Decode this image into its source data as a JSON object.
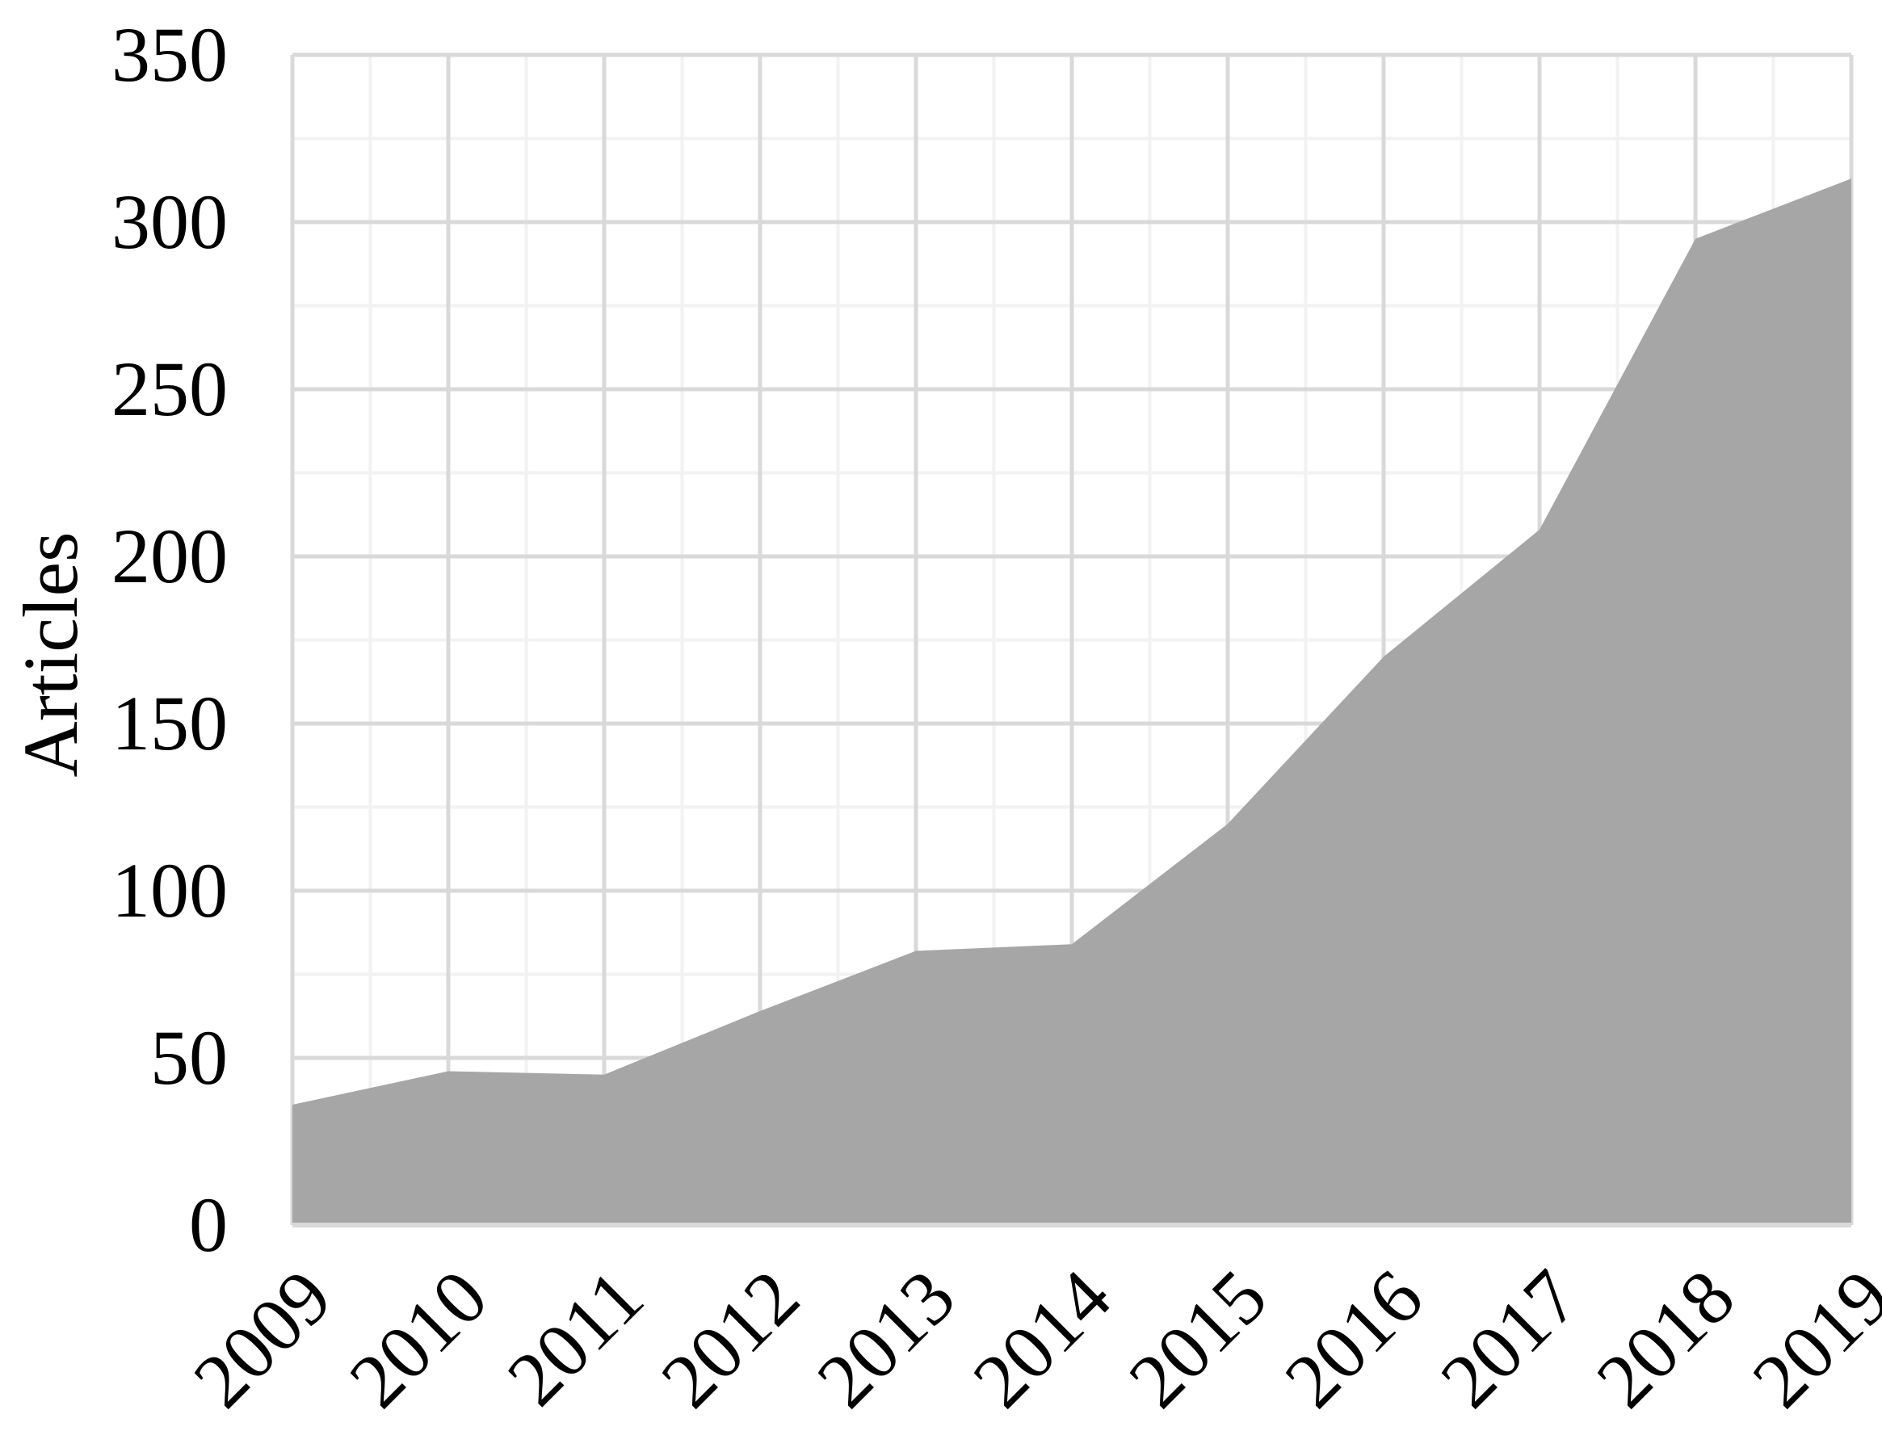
{
  "chart_data": {
    "type": "area",
    "title": "",
    "xlabel": "",
    "ylabel": "Articles",
    "x": [
      "2009",
      "2010",
      "2011",
      "2012",
      "2013",
      "2014",
      "2015",
      "2016",
      "2017",
      "2018",
      "2019"
    ],
    "values": [
      36,
      46,
      45,
      64,
      82,
      84,
      120,
      170,
      208,
      295,
      313
    ],
    "ylim": [
      0,
      350
    ],
    "yticks": [
      "0",
      "50",
      "100",
      "150",
      "200",
      "250",
      "300",
      "350"
    ],
    "ytick_values": [
      0,
      50,
      100,
      150,
      200,
      250,
      300,
      350
    ],
    "grid": true,
    "minor_grid": true,
    "legend": "none",
    "colors": {
      "area": "#a6a6a6",
      "major_grid": "#d9d9d9",
      "minor_grid": "#f2f2f2",
      "text": "#000000"
    }
  }
}
